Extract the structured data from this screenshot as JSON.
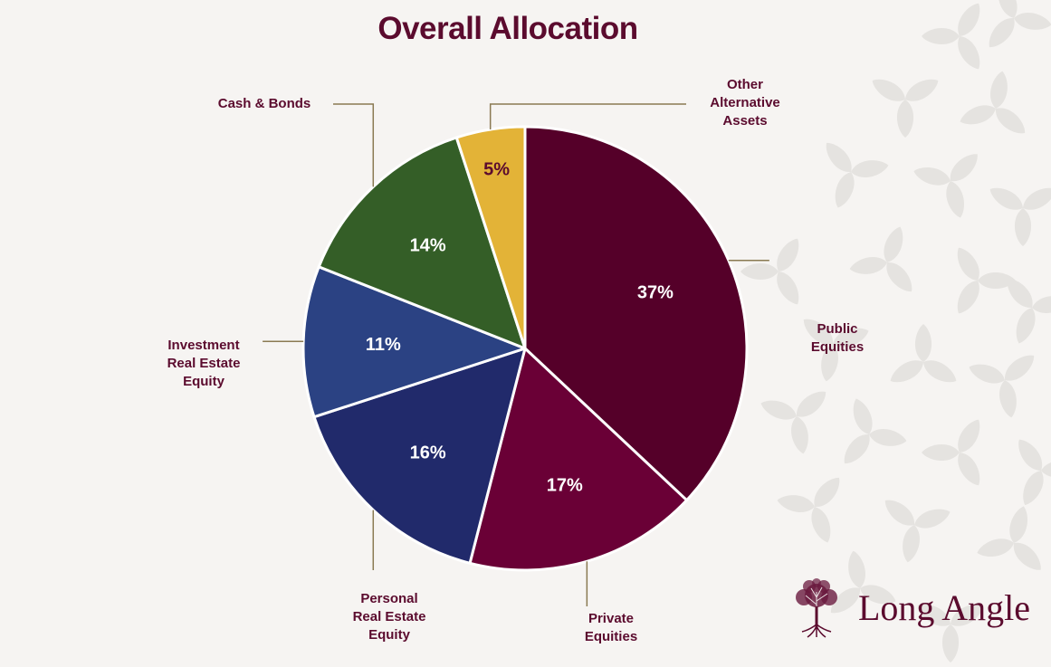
{
  "page": {
    "brand_name": "Long Angle"
  },
  "colors": {
    "background": "#f6f4f2",
    "title": "#5b0b2e",
    "leader_line": "#8a7a52"
  },
  "chart_data": {
    "type": "pie",
    "title": "Overall Allocation",
    "start": "12 o'clock, clockwise",
    "slices": [
      {
        "label": "Public Equities",
        "value": 37,
        "data_label": "37%",
        "color": "#550029"
      },
      {
        "label": "Private Equities",
        "value": 17,
        "data_label": "17%",
        "color": "#6a0036"
      },
      {
        "label": "Personal Real Estate Equity",
        "value": 16,
        "data_label": "16%",
        "color": "#212a6b"
      },
      {
        "label": "Investment Real Estate Equity",
        "value": 11,
        "data_label": "11%",
        "color": "#2b4283"
      },
      {
        "label": "Cash & Bonds",
        "value": 14,
        "data_label": "14%",
        "color": "#345e27"
      },
      {
        "label": "Other Alternative Assets",
        "value": 5,
        "data_label": "5%",
        "color": "#e3b337"
      }
    ]
  }
}
